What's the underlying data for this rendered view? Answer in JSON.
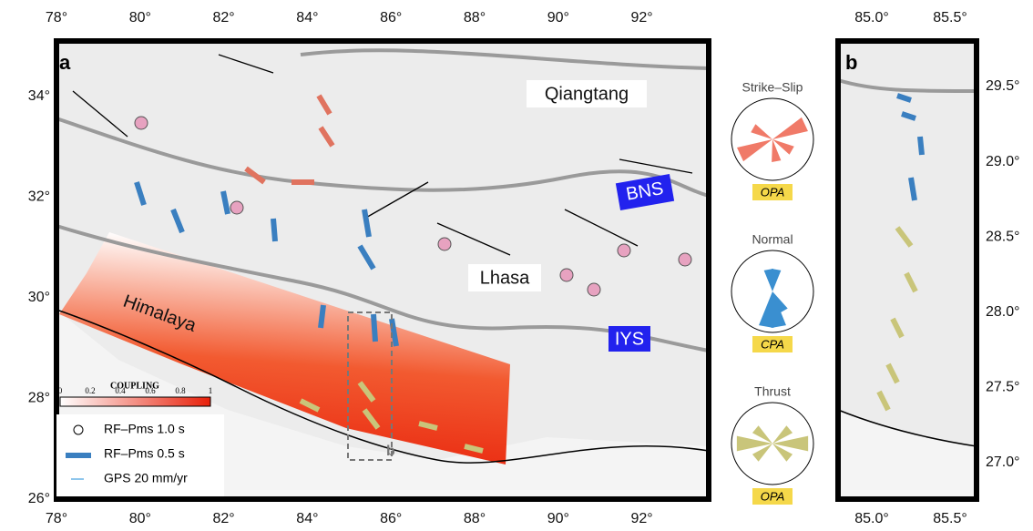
{
  "panel_a": {
    "label": "a",
    "x_ticks": [
      "78°",
      "80°",
      "82°",
      "84°",
      "86°",
      "88°",
      "90°",
      "92°"
    ],
    "y_ticks": [
      "34°",
      "32°",
      "30°",
      "28°",
      "26°"
    ],
    "regions": {
      "qiangtang": "Qiangtang",
      "lhasa": "Lhasa",
      "himalaya": "Himalaya",
      "bns": "BNS",
      "iys": "IYS",
      "inset": "b"
    },
    "colorbar": {
      "title": "COUPLING",
      "ticks": [
        "0",
        "0.2",
        "0.4",
        "0.6",
        "0.8",
        "1"
      ]
    },
    "legend": [
      "RF–Pms 1.0 s",
      "RF–Pms 0.5 s",
      "GPS 20 mm/yr"
    ]
  },
  "roses": [
    {
      "title": "Strike–Slip",
      "label": "OPA"
    },
    {
      "title": "Normal",
      "label": "CPA"
    },
    {
      "title": "Thrust",
      "label": "OPA"
    }
  ],
  "panel_b": {
    "label": "b",
    "x_ticks": [
      "85.0°",
      "85.5°"
    ],
    "y_ticks": [
      "29.5°",
      "29.0°",
      "28.5°",
      "28.0°",
      "27.5°",
      "27.0°"
    ]
  }
}
